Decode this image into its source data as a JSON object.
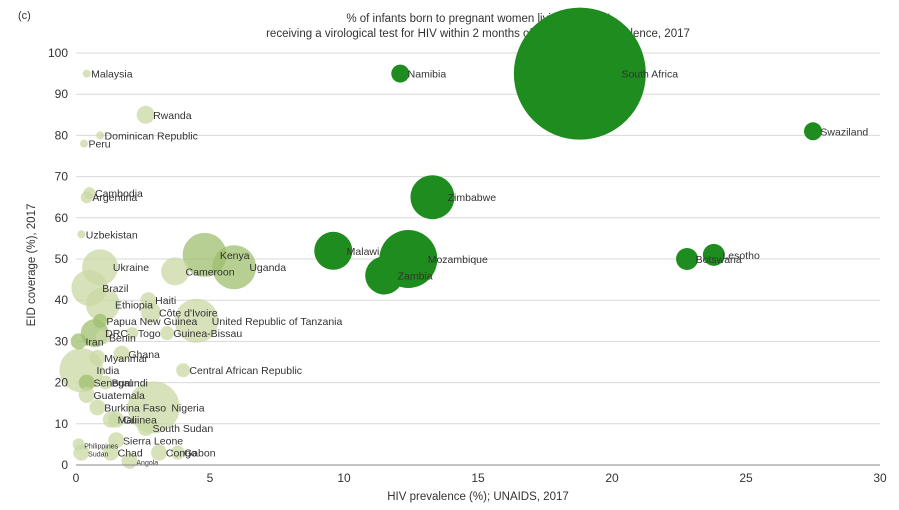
{
  "panel_label": "(c)",
  "chart_data": {
    "type": "scatter",
    "title": "% of infants born to pregnant women living with HIV",
    "subtitle": "receiving a virological test for HIV within 2 months of birth vs. HIV prevalence, 2017",
    "xlabel": "HIV prevalence (%); UNAIDS, 2017",
    "ylabel": "EID coverage (%), 2017",
    "xlim": [
      0,
      30
    ],
    "ylim": [
      0,
      100
    ],
    "xticks": [
      0,
      5,
      10,
      15,
      20,
      25,
      30
    ],
    "yticks": [
      0,
      10,
      20,
      30,
      40,
      50,
      60,
      70,
      80,
      90,
      100
    ],
    "grid": "horizontal",
    "colors": {
      "pale": "#c9d8a4",
      "mid": "#9fbf6e",
      "dark": "#1e8c1e"
    },
    "points": [
      {
        "label": "Malaysia",
        "x": 0.4,
        "y": 95,
        "r": 4,
        "c": "pale"
      },
      {
        "label": "Namibia",
        "x": 12.1,
        "y": 95,
        "r": 9,
        "c": "dark"
      },
      {
        "label": "South Africa",
        "x": 18.8,
        "y": 95,
        "r": 66,
        "c": "dark"
      },
      {
        "label": "Rwanda",
        "x": 2.6,
        "y": 85,
        "r": 9,
        "c": "pale"
      },
      {
        "label": "Swaziland",
        "x": 27.5,
        "y": 81,
        "r": 9,
        "c": "dark"
      },
      {
        "label": "Dominican Republic",
        "x": 0.9,
        "y": 80,
        "r": 4,
        "c": "pale"
      },
      {
        "label": "Peru",
        "x": 0.3,
        "y": 78,
        "r": 4,
        "c": "pale"
      },
      {
        "label": "Cambodia",
        "x": 0.5,
        "y": 66,
        "r": 6,
        "c": "pale"
      },
      {
        "label": "Argentina",
        "x": 0.4,
        "y": 65,
        "r": 6,
        "c": "pale"
      },
      {
        "label": "Zimbabwe",
        "x": 13.3,
        "y": 65,
        "r": 22,
        "c": "dark"
      },
      {
        "label": "Uzbekistan",
        "x": 0.2,
        "y": 56,
        "r": 4,
        "c": "pale"
      },
      {
        "label": "Kenya",
        "x": 4.8,
        "y": 51,
        "r": 22,
        "c": "mid"
      },
      {
        "label": "Malawi",
        "x": 9.6,
        "y": 52,
        "r": 19,
        "c": "dark"
      },
      {
        "label": "Mozambique",
        "x": 12.4,
        "y": 50,
        "r": 29,
        "c": "dark"
      },
      {
        "label": "Lesotho",
        "x": 23.8,
        "y": 51,
        "r": 11,
        "c": "dark"
      },
      {
        "label": "Botswana",
        "x": 22.8,
        "y": 50,
        "r": 11,
        "c": "dark"
      },
      {
        "label": "Ukraine",
        "x": 0.9,
        "y": 48,
        "r": 18,
        "c": "pale"
      },
      {
        "label": "Cameroon",
        "x": 3.7,
        "y": 47,
        "r": 14,
        "c": "pale"
      },
      {
        "label": "Uganda",
        "x": 5.9,
        "y": 48,
        "r": 22,
        "c": "mid"
      },
      {
        "label": "Zambia",
        "x": 11.5,
        "y": 46,
        "r": 19,
        "c": "dark"
      },
      {
        "label": "Brazil",
        "x": 0.5,
        "y": 43,
        "r": 18,
        "c": "pale"
      },
      {
        "label": "Haiti",
        "x": 2.7,
        "y": 40,
        "r": 8,
        "c": "pale"
      },
      {
        "label": "Ethiopia",
        "x": 1.0,
        "y": 39,
        "r": 17,
        "c": "pale"
      },
      {
        "label": "Côte d'Ivoire",
        "x": 2.8,
        "y": 37,
        "r": 10,
        "c": "pale"
      },
      {
        "label": "Papua New Guinea",
        "x": 0.9,
        "y": 35,
        "r": 7,
        "c": "mid"
      },
      {
        "label": "United Republic of Tanzania",
        "x": 4.5,
        "y": 35,
        "r": 22,
        "c": "pale"
      },
      {
        "label": "Guinea-Bissau",
        "x": 3.4,
        "y": 32,
        "r": 7,
        "c": "pale"
      },
      {
        "label": "Togo",
        "x": 2.1,
        "y": 32,
        "r": 6,
        "c": "pale"
      },
      {
        "label": "DRC",
        "x": 0.7,
        "y": 32,
        "r": 14,
        "c": "mid"
      },
      {
        "label": "Benin",
        "x": 1.0,
        "y": 31,
        "r": 7,
        "c": "pale"
      },
      {
        "label": "Iran",
        "x": 0.1,
        "y": 30,
        "r": 8,
        "c": "mid"
      },
      {
        "label": "Myanmar",
        "x": 0.8,
        "y": 26,
        "r": 8,
        "c": "pale"
      },
      {
        "label": "Ghana",
        "x": 1.7,
        "y": 27,
        "r": 8,
        "c": "pale"
      },
      {
        "label": "India",
        "x": 0.2,
        "y": 23,
        "r": 22,
        "c": "pale"
      },
      {
        "label": "Central African Republic",
        "x": 4.0,
        "y": 23,
        "r": 7,
        "c": "pale"
      },
      {
        "label": "Senegal",
        "x": 0.4,
        "y": 20,
        "r": 8,
        "c": "mid"
      },
      {
        "label": "Burundi",
        "x": 1.1,
        "y": 20,
        "r": 7,
        "c": "pale"
      },
      {
        "label": "Guatemala",
        "x": 0.4,
        "y": 17,
        "r": 8,
        "c": "pale"
      },
      {
        "label": "Nigeria",
        "x": 2.9,
        "y": 14,
        "r": 26,
        "c": "pale"
      },
      {
        "label": "Burkina Faso",
        "x": 0.8,
        "y": 14,
        "r": 8,
        "c": "pale"
      },
      {
        "label": "Mali",
        "x": 1.3,
        "y": 11,
        "r": 8,
        "c": "pale"
      },
      {
        "label": "Guinea",
        "x": 1.5,
        "y": 11,
        "r": 8,
        "c": "pale"
      },
      {
        "label": "South Sudan",
        "x": 2.6,
        "y": 9,
        "r": 8,
        "c": "pale"
      },
      {
        "label": "Sierra Leone",
        "x": 1.5,
        "y": 6,
        "r": 8,
        "c": "pale"
      },
      {
        "label": "Philippines",
        "x": 0.1,
        "y": 5,
        "r": 6,
        "c": "pale"
      },
      {
        "label": "Sudan",
        "x": 0.2,
        "y": 3,
        "r": 8,
        "c": "pale"
      },
      {
        "label": "Chad",
        "x": 1.3,
        "y": 3,
        "r": 8,
        "c": "pale"
      },
      {
        "label": "Congo",
        "x": 3.1,
        "y": 3,
        "r": 8,
        "c": "pale"
      },
      {
        "label": "Gabon",
        "x": 3.8,
        "y": 3,
        "r": 7,
        "c": "pale"
      },
      {
        "label": "Angola",
        "x": 2.0,
        "y": 1,
        "r": 8,
        "c": "pale"
      }
    ]
  }
}
